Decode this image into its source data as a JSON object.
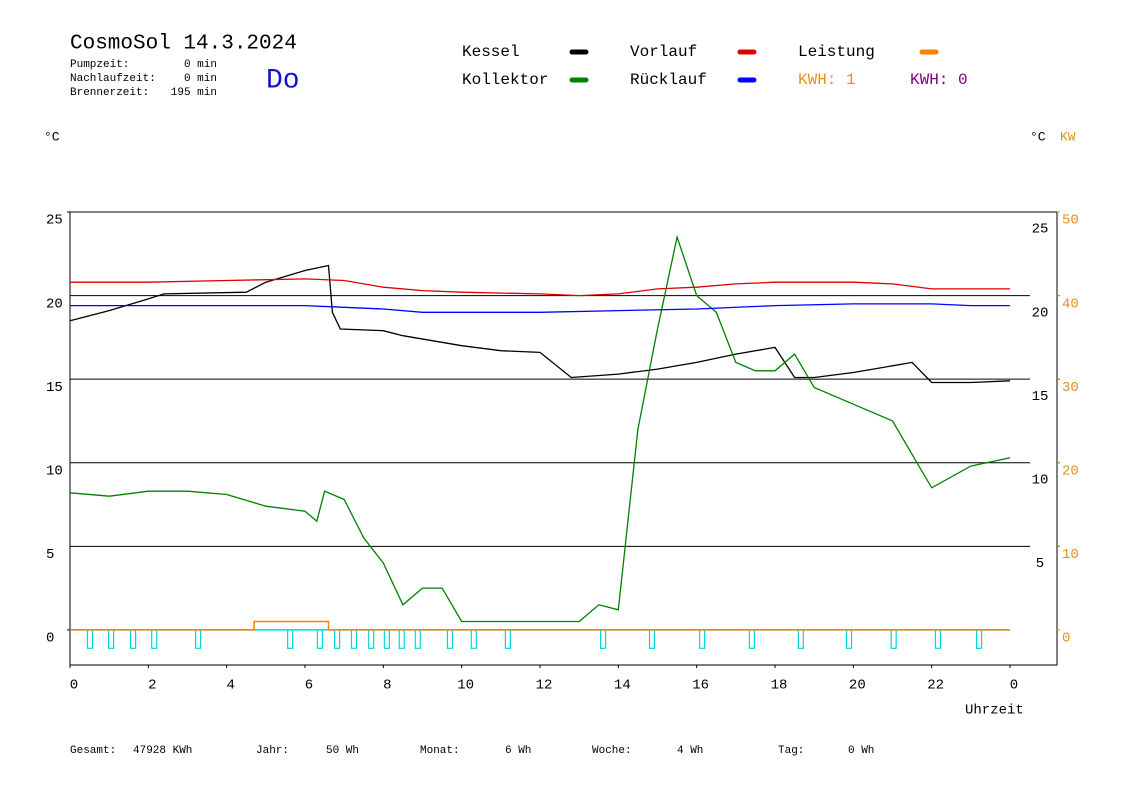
{
  "chart_data": {
    "type": "line",
    "title": "CosmoSol 14.3.2024",
    "day": "Do",
    "stats": [
      {
        "label": "Pumpzeit:",
        "value": "0 min"
      },
      {
        "label": "Nachlaufzeit:",
        "value": "0 min"
      },
      {
        "label": "Brennerzeit:",
        "value": "195 min"
      }
    ],
    "kwh_labels": [
      {
        "text": "KWH: 1",
        "color": "#e8901a"
      },
      {
        "text": "KWH: 0",
        "color": "#800080"
      }
    ],
    "y_label": "°C",
    "y_right_label": "°C",
    "y2_label": "KW",
    "x_label": "Uhrzeit",
    "xlim": [
      0,
      25.2
    ],
    "ylim": [
      -2.1,
      25
    ],
    "y2lim": [
      -4.2,
      50
    ],
    "xticks": [
      0,
      2,
      4,
      6,
      8,
      10,
      12,
      14,
      16,
      18,
      20,
      22,
      {
        "value": 24,
        "label": "0"
      }
    ],
    "yticks": [
      0,
      5,
      10,
      15,
      20,
      25
    ],
    "yticks_right": [
      5,
      10,
      15,
      20,
      25
    ],
    "y2ticks": [
      0,
      10,
      20,
      30,
      40,
      50
    ],
    "y2color": "#e09020",
    "grid": true,
    "series": [
      {
        "name": "Kessel",
        "color": "#000000",
        "x": [
          0,
          1,
          2,
          2.4,
          4.5,
          5,
          6,
          6.6,
          6.7,
          6.9,
          8,
          8.5,
          10,
          11,
          12,
          12.8,
          14,
          15,
          16,
          17,
          18,
          18.5,
          19,
          20,
          21,
          21.5,
          22,
          23,
          24
        ],
        "values": [
          18.5,
          19.1,
          19.8,
          20.1,
          20.2,
          20.8,
          21.5,
          21.8,
          19,
          18,
          17.9,
          17.6,
          17,
          16.7,
          16.6,
          15.1,
          15.3,
          15.6,
          16,
          16.5,
          16.9,
          15.1,
          15.1,
          15.4,
          15.8,
          16,
          14.8,
          14.8,
          14.9
        ]
      },
      {
        "name": "Vorlauf",
        "color": "#e00000",
        "x": [
          0,
          2,
          4,
          6,
          7,
          8,
          9,
          10,
          12,
          13,
          14,
          15,
          16,
          17,
          18,
          19,
          20,
          21,
          22,
          23,
          24
        ],
        "values": [
          20.8,
          20.8,
          20.9,
          21,
          20.9,
          20.5,
          20.3,
          20.2,
          20.1,
          20,
          20.1,
          20.4,
          20.5,
          20.7,
          20.8,
          20.8,
          20.8,
          20.7,
          20.4,
          20.4,
          20.4
        ]
      },
      {
        "name": "Leistung",
        "color": "#ff8000",
        "axis": "y2",
        "x": [
          0,
          4.7,
          4.7,
          6.6,
          6.6,
          24
        ],
        "values": [
          0,
          0,
          1,
          1,
          0,
          0
        ]
      },
      {
        "name": "Kollektor",
        "color": "#008000",
        "x": [
          0,
          1,
          2,
          3,
          4,
          5,
          6,
          6.3,
          6.5,
          7,
          7.5,
          8,
          8.5,
          9,
          9.5,
          10,
          11,
          12,
          13,
          13.5,
          14,
          14.5,
          15,
          15.5,
          16,
          16.5,
          17,
          17.5,
          18,
          18.5,
          19,
          20,
          21,
          21.5,
          22,
          23,
          24
        ],
        "values": [
          8.2,
          8,
          8.3,
          8.3,
          8.1,
          7.4,
          7.1,
          6.5,
          8.3,
          7.8,
          5.5,
          4,
          1.5,
          2.5,
          2.5,
          0.5,
          0.5,
          0.5,
          0.5,
          1.5,
          1.2,
          12,
          18,
          23.5,
          20,
          19,
          16,
          15.5,
          15.5,
          16.5,
          14.5,
          13.5,
          12.5,
          10.5,
          8.5,
          9.8,
          10.3
        ]
      },
      {
        "name": "Rücklauf",
        "color": "#0000ff",
        "x": [
          0,
          2,
          4,
          6,
          7,
          8,
          9,
          10,
          12,
          14,
          16,
          18,
          20,
          22,
          23,
          24
        ],
        "values": [
          19.4,
          19.4,
          19.4,
          19.4,
          19.3,
          19.2,
          19,
          19,
          19,
          19.1,
          19.2,
          19.4,
          19.5,
          19.5,
          19.4,
          19.4
        ]
      }
    ],
    "pump": {
      "color": "#00d8d8",
      "x": [
        0.51,
        1.05,
        1.61,
        2.15,
        3.27,
        5.62,
        6.38,
        6.82,
        7.25,
        7.69,
        8.09,
        8.47,
        8.88,
        9.7,
        10.31,
        11.18,
        13.61,
        14.86,
        16.14,
        17.41,
        18.66,
        19.89,
        21.03,
        22.16,
        23.21
      ],
      "values": [
        -1.1,
        -1.1,
        -1.1,
        -1.1,
        -1.1,
        -1.1,
        -1.1,
        -1.1,
        -1.1,
        -1.1,
        -1.1,
        -1.1,
        -1.1,
        -1.1,
        -1.1,
        -1.1,
        -1.1,
        -1.1,
        -1.1,
        -1.1,
        -1.1,
        -1.1,
        -1.1,
        -1.1,
        -1.1
      ]
    },
    "totals": [
      {
        "label": "Gesamt:",
        "value": "47928 KWh"
      },
      {
        "label": "Jahr:",
        "value": "50 Wh"
      },
      {
        "label": "Monat:",
        "value": "6 Wh"
      },
      {
        "label": "Woche:",
        "value": "4 Wh"
      },
      {
        "label": "Tag:",
        "value": "0 Wh"
      }
    ]
  }
}
